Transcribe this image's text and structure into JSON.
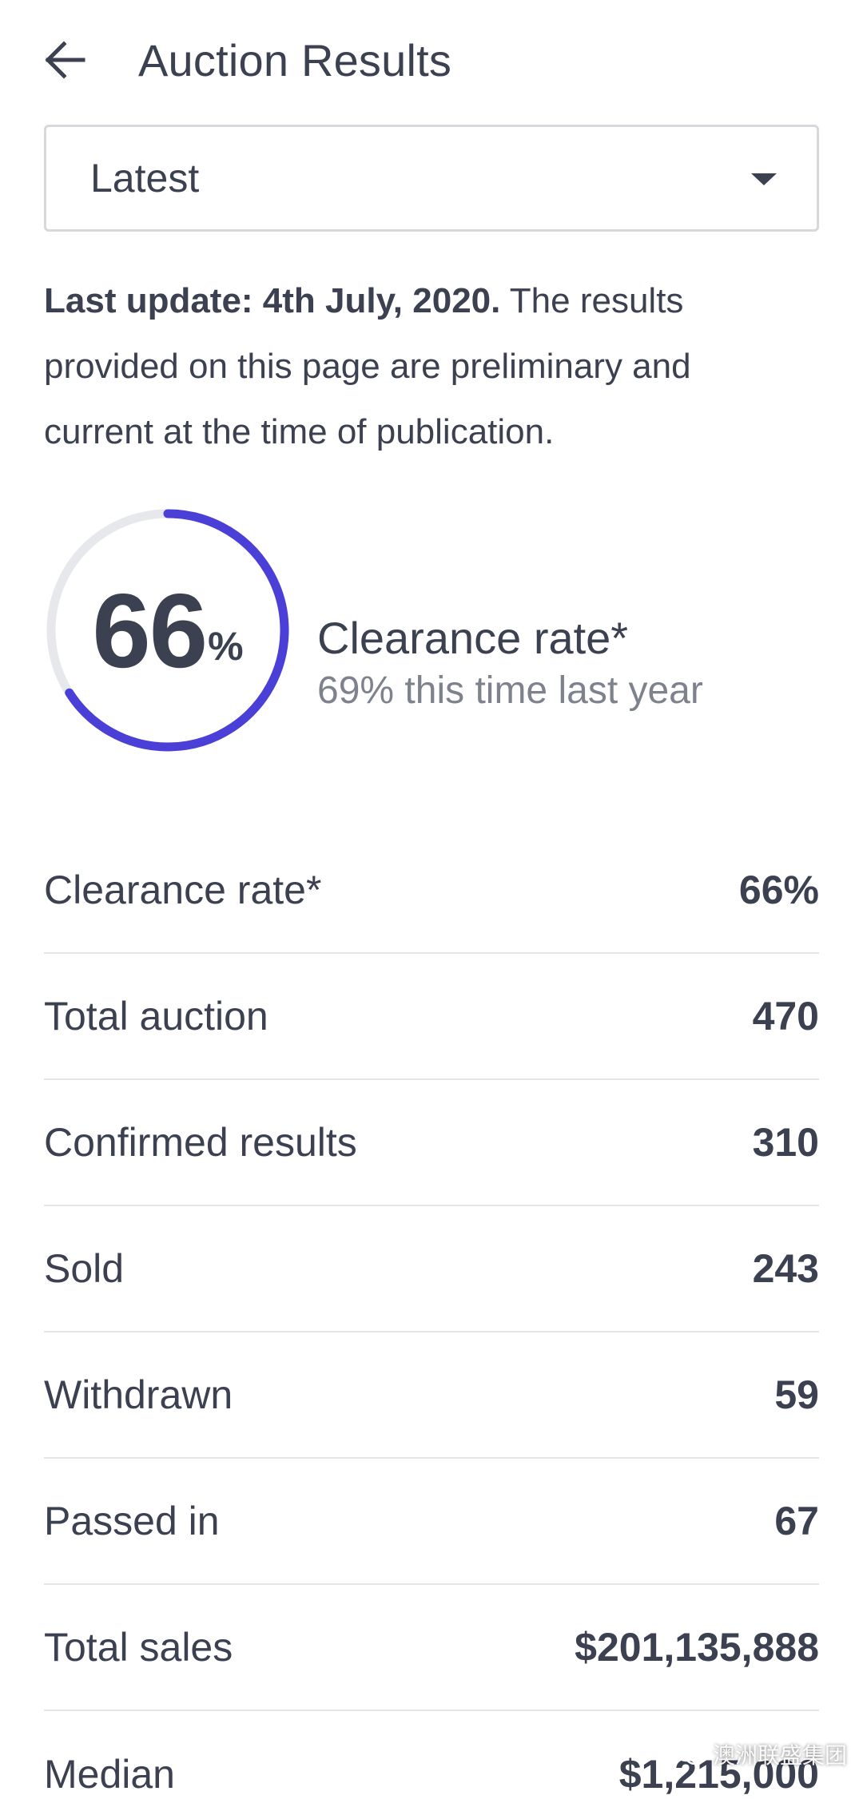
{
  "header": {
    "title": "Auction Results",
    "back_icon": "arrow-left-icon"
  },
  "filter": {
    "selected": "Latest",
    "caret_icon": "caret-down-icon"
  },
  "notice": {
    "bold": "Last update: 4th July, 2020.",
    "text": " The results provided on this page are preliminary and current at the time of publication."
  },
  "summary": {
    "percent": 66,
    "unit": "%",
    "label": "Clearance rate*",
    "sub": "69% this time last year",
    "ring_color": "#4a3fd6",
    "track_color": "#e6e8eb"
  },
  "stats": [
    {
      "label": "Clearance rate*",
      "value": "66%"
    },
    {
      "label": "Total auction",
      "value": "470"
    },
    {
      "label": "Confirmed results",
      "value": "310"
    },
    {
      "label": "Sold",
      "value": "243"
    },
    {
      "label": "Withdrawn",
      "value": "59"
    },
    {
      "label": "Passed in",
      "value": "67"
    },
    {
      "label": "Total sales",
      "value": "$201,135,888"
    },
    {
      "label": "Median",
      "value": "$1,215,000"
    }
  ],
  "watermark": {
    "text": "澳洲联盛集团",
    "icon": "wechat-icon"
  }
}
